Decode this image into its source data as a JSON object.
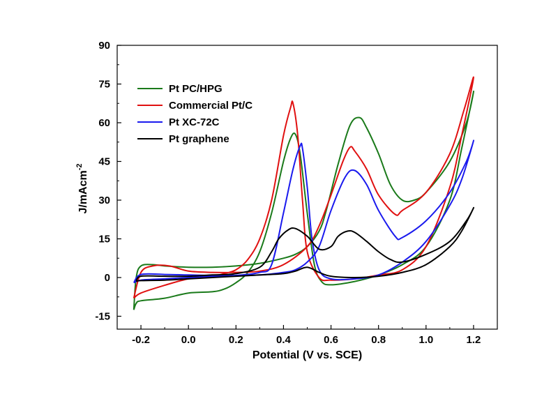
{
  "chart_data": {
    "type": "line",
    "title": "",
    "xlabel": "Potential (V vs. SCE)",
    "ylabel_main": "J/mAcm",
    "ylabel_sup": "-2",
    "xlim": [
      -0.3,
      1.3
    ],
    "ylim": [
      -20,
      90
    ],
    "x_ticks": [
      -0.2,
      0.0,
      0.2,
      0.4,
      0.6,
      0.8,
      1.0,
      1.2
    ],
    "x_tick_labels": [
      "-0.2",
      "0.0",
      "0.2",
      "0.4",
      "0.6",
      "0.8",
      "1.0",
      "1.2"
    ],
    "y_ticks": [
      -15,
      0,
      15,
      30,
      45,
      60,
      75,
      90
    ],
    "y_tick_labels": [
      "-15",
      "0",
      "15",
      "30",
      "45",
      "60",
      "75",
      "90"
    ],
    "legend_position": "top-left",
    "series": [
      {
        "name": "Pt PC/HPG",
        "color": "#1a7a1a",
        "points": [
          [
            -0.23,
            -12.5
          ],
          [
            -0.22,
            -10
          ],
          [
            -0.2,
            -9
          ],
          [
            -0.1,
            -8
          ],
          [
            0.0,
            -6
          ],
          [
            0.1,
            -5.5
          ],
          [
            0.15,
            -4.5
          ],
          [
            0.2,
            -2
          ],
          [
            0.25,
            2
          ],
          [
            0.3,
            10
          ],
          [
            0.35,
            25
          ],
          [
            0.4,
            45
          ],
          [
            0.43,
            54
          ],
          [
            0.45,
            55.5
          ],
          [
            0.47,
            48
          ],
          [
            0.5,
            25
          ],
          [
            0.53,
            5
          ],
          [
            0.56,
            -1.5
          ],
          [
            0.6,
            -2.8
          ],
          [
            0.7,
            -1.5
          ],
          [
            0.8,
            1
          ],
          [
            0.9,
            5
          ],
          [
            1.0,
            12
          ],
          [
            1.1,
            30
          ],
          [
            1.15,
            50
          ],
          [
            1.2,
            72
          ],
          [
            1.17,
            60
          ],
          [
            1.1,
            45
          ],
          [
            1.0,
            33
          ],
          [
            0.95,
            30
          ],
          [
            0.9,
            30
          ],
          [
            0.85,
            36
          ],
          [
            0.8,
            48
          ],
          [
            0.75,
            58
          ],
          [
            0.72,
            62
          ],
          [
            0.68,
            59
          ],
          [
            0.63,
            44
          ],
          [
            0.58,
            26
          ],
          [
            0.55,
            18
          ],
          [
            0.5,
            12
          ],
          [
            0.45,
            9
          ],
          [
            0.4,
            7.5
          ],
          [
            0.3,
            5.5
          ],
          [
            0.2,
            4.5
          ],
          [
            0.1,
            4
          ],
          [
            0.0,
            4
          ],
          [
            -0.1,
            4.5
          ],
          [
            -0.15,
            5
          ],
          [
            -0.2,
            4.5
          ],
          [
            -0.22,
            0
          ],
          [
            -0.23,
            -12.5
          ]
        ]
      },
      {
        "name": "Commercial Pt/C",
        "color": "#e01010",
        "points": [
          [
            -0.23,
            -8
          ],
          [
            -0.2,
            -6
          ],
          [
            -0.1,
            -3
          ],
          [
            0.0,
            -0.5
          ],
          [
            0.1,
            0.5
          ],
          [
            0.15,
            1.5
          ],
          [
            0.2,
            3
          ],
          [
            0.25,
            7
          ],
          [
            0.3,
            15
          ],
          [
            0.35,
            30
          ],
          [
            0.4,
            55
          ],
          [
            0.43,
            66
          ],
          [
            0.44,
            67.5
          ],
          [
            0.46,
            55
          ],
          [
            0.48,
            30
          ],
          [
            0.5,
            10
          ],
          [
            0.55,
            0
          ],
          [
            0.6,
            -1
          ],
          [
            0.7,
            -0.5
          ],
          [
            0.8,
            1
          ],
          [
            0.9,
            3
          ],
          [
            1.0,
            12
          ],
          [
            1.1,
            35
          ],
          [
            1.15,
            55
          ],
          [
            1.2,
            77.5
          ],
          [
            1.16,
            65
          ],
          [
            1.1,
            48
          ],
          [
            1.0,
            33
          ],
          [
            0.9,
            26
          ],
          [
            0.87,
            24.5
          ],
          [
            0.8,
            32
          ],
          [
            0.75,
            42
          ],
          [
            0.7,
            49
          ],
          [
            0.68,
            50.5
          ],
          [
            0.65,
            45
          ],
          [
            0.6,
            32
          ],
          [
            0.55,
            20
          ],
          [
            0.5,
            12
          ],
          [
            0.4,
            5
          ],
          [
            0.3,
            2.5
          ],
          [
            0.2,
            2
          ],
          [
            0.1,
            2
          ],
          [
            0.0,
            2.5
          ],
          [
            -0.08,
            4.5
          ],
          [
            -0.15,
            4.5
          ],
          [
            -0.2,
            2
          ],
          [
            -0.23,
            -8
          ]
        ]
      },
      {
        "name": "Pt XC-72C",
        "color": "#1a1aee",
        "points": [
          [
            -0.23,
            -2
          ],
          [
            -0.2,
            -1
          ],
          [
            -0.1,
            -0.5
          ],
          [
            0.0,
            0
          ],
          [
            0.1,
            0.5
          ],
          [
            0.2,
            0.8
          ],
          [
            0.3,
            2
          ],
          [
            0.35,
            5
          ],
          [
            0.4,
            25
          ],
          [
            0.44,
            42
          ],
          [
            0.47,
            51
          ],
          [
            0.48,
            50
          ],
          [
            0.5,
            35
          ],
          [
            0.52,
            15
          ],
          [
            0.55,
            3
          ],
          [
            0.6,
            -0.5
          ],
          [
            0.7,
            -0.5
          ],
          [
            0.8,
            1
          ],
          [
            0.9,
            6
          ],
          [
            1.0,
            14
          ],
          [
            1.1,
            28
          ],
          [
            1.15,
            38
          ],
          [
            1.2,
            53
          ],
          [
            1.17,
            45
          ],
          [
            1.1,
            33
          ],
          [
            1.0,
            22
          ],
          [
            0.9,
            15.5
          ],
          [
            0.87,
            16
          ],
          [
            0.8,
            26
          ],
          [
            0.75,
            36
          ],
          [
            0.7,
            41.5
          ],
          [
            0.66,
            39
          ],
          [
            0.6,
            26
          ],
          [
            0.55,
            12
          ],
          [
            0.5,
            6
          ],
          [
            0.45,
            3
          ],
          [
            0.4,
            2
          ],
          [
            0.3,
            1
          ],
          [
            0.2,
            0.8
          ],
          [
            0.1,
            0.8
          ],
          [
            0.0,
            1
          ],
          [
            -0.1,
            1.2
          ],
          [
            -0.2,
            1.2
          ],
          [
            -0.23,
            -2
          ]
        ]
      },
      {
        "name": "Pt graphene",
        "color": "#000000",
        "points": [
          [
            -0.22,
            -1.5
          ],
          [
            -0.2,
            -1.2
          ],
          [
            -0.1,
            -1
          ],
          [
            0.0,
            -0.5
          ],
          [
            0.1,
            0
          ],
          [
            0.2,
            0.5
          ],
          [
            0.3,
            1
          ],
          [
            0.4,
            1.5
          ],
          [
            0.45,
            2.5
          ],
          [
            0.5,
            4
          ],
          [
            0.55,
            2
          ],
          [
            0.6,
            0.5
          ],
          [
            0.7,
            0
          ],
          [
            0.8,
            0.5
          ],
          [
            0.9,
            2
          ],
          [
            1.0,
            5
          ],
          [
            1.1,
            12
          ],
          [
            1.15,
            18
          ],
          [
            1.2,
            27
          ],
          [
            1.17,
            22
          ],
          [
            1.1,
            14
          ],
          [
            1.0,
            9
          ],
          [
            0.9,
            6
          ],
          [
            0.85,
            7
          ],
          [
            0.8,
            10
          ],
          [
            0.75,
            14
          ],
          [
            0.7,
            17.5
          ],
          [
            0.67,
            18
          ],
          [
            0.63,
            16
          ],
          [
            0.6,
            12
          ],
          [
            0.55,
            11
          ],
          [
            0.5,
            16
          ],
          [
            0.45,
            19
          ],
          [
            0.42,
            18.5
          ],
          [
            0.38,
            15
          ],
          [
            0.35,
            10
          ],
          [
            0.3,
            4
          ],
          [
            0.2,
            1.5
          ],
          [
            0.1,
            1
          ],
          [
            0.0,
            0.5
          ],
          [
            -0.1,
            0.5
          ],
          [
            -0.2,
            0.5
          ],
          [
            -0.22,
            -1.5
          ]
        ]
      }
    ]
  }
}
